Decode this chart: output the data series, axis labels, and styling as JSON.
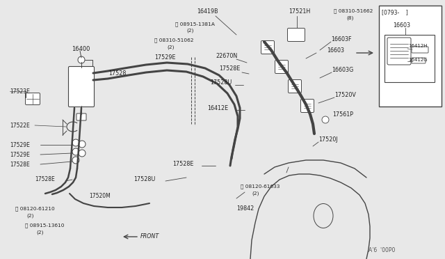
{
  "bg_color": "#e8e8e8",
  "line_color": "#444444",
  "text_color": "#222222",
  "figsize": [
    6.4,
    3.72
  ],
  "dpi": 100,
  "footer": "A'6  '00P0",
  "box_label": "[0793-    ]",
  "box_sub": "16603"
}
